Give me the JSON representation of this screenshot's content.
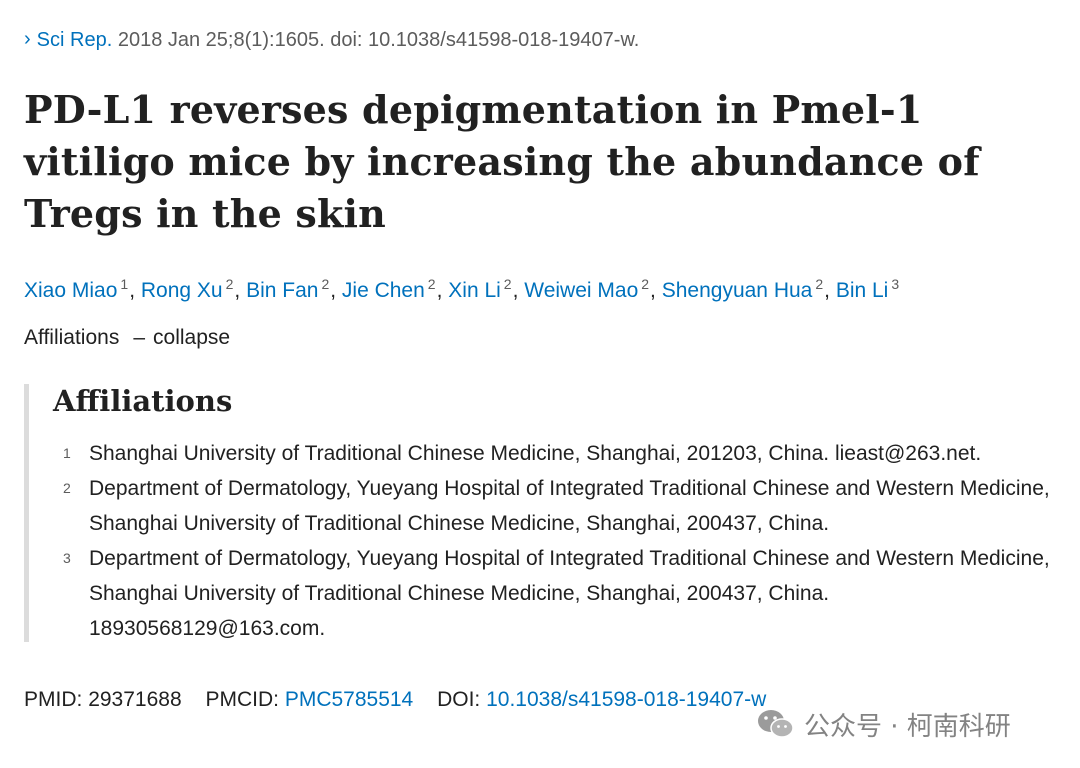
{
  "citation": {
    "chevron_icon": "chevron-right-icon",
    "journal": "Sci Rep.",
    "details": " 2018 Jan 25;8(1):1605. doi: 10.1038/s41598-018-19407-w."
  },
  "title": "PD-L1 reverses depigmentation in Pmel-1 vitiligo mice by increasing the abundance of Tregs in the skin",
  "authors": [
    {
      "name": "Xiao Miao",
      "aff": "1"
    },
    {
      "name": "Rong Xu",
      "aff": "2"
    },
    {
      "name": "Bin Fan",
      "aff": "2"
    },
    {
      "name": "Jie Chen",
      "aff": "2"
    },
    {
      "name": "Xin Li",
      "aff": "2"
    },
    {
      "name": "Weiwei Mao",
      "aff": "2"
    },
    {
      "name": "Shengyuan Hua",
      "aff": "2"
    },
    {
      "name": "Bin Li",
      "aff": "3"
    }
  ],
  "affiliations_toggle": {
    "label": "Affiliations",
    "dash": "–",
    "action": "collapse"
  },
  "affiliations": {
    "heading": "Affiliations",
    "items": [
      {
        "num": "1",
        "text": "Shanghai University of Traditional Chinese Medicine, Shanghai, 201203, China. lieast@263.net."
      },
      {
        "num": "2",
        "text": "Department of Dermatology, Yueyang Hospital of Integrated Traditional Chinese and Western Medicine, Shanghai University of Traditional Chinese Medicine, Shanghai, 200437, China."
      },
      {
        "num": "3",
        "text": "Department of Dermatology, Yueyang Hospital of Integrated Traditional Chinese and Western Medicine, Shanghai University of Traditional Chinese Medicine, Shanghai, 200437, China. 18930568129@163.com."
      }
    ]
  },
  "identifiers": {
    "pmid_label": "PMID:",
    "pmid": "29371688",
    "pmcid_label": "PMCID:",
    "pmcid": "PMC5785514",
    "doi_label": "DOI:",
    "doi": "10.1038/s41598-018-19407-w"
  },
  "watermark": {
    "icon": "wechat-icon",
    "text": "公众号 · 柯南科研"
  },
  "colors": {
    "link": "#0071bc",
    "text": "#212121",
    "muted": "#5c5c5c",
    "border": "#dcdcdc"
  }
}
